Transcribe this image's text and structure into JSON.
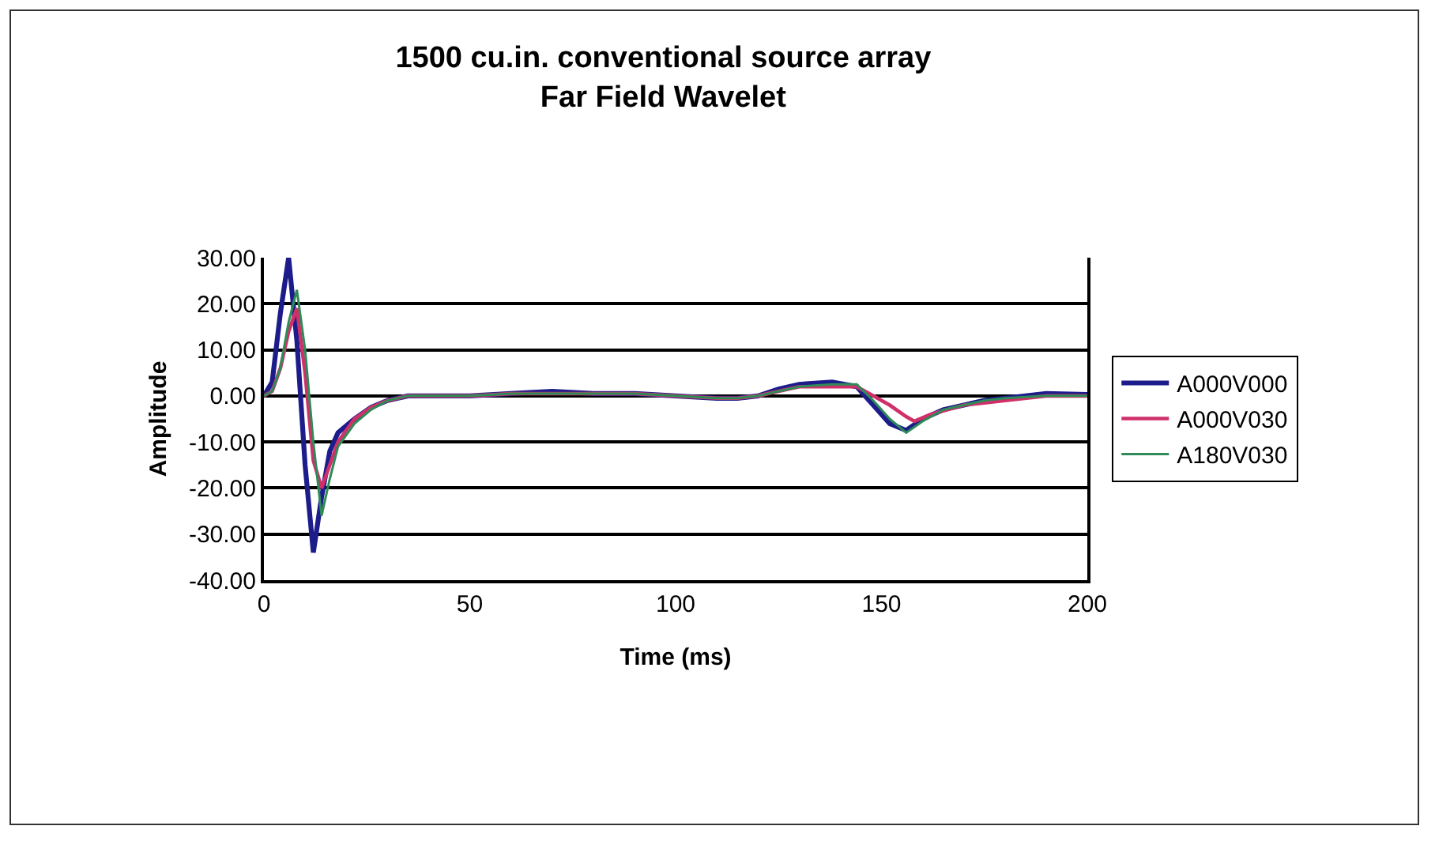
{
  "chart_data": {
    "type": "line",
    "title": "1500 cu.in. conventional source array\nFar Field Wavelet",
    "xlabel": "Time (ms)",
    "ylabel": "Amplitude",
    "xlim": [
      0,
      200
    ],
    "xticks": [
      {
        "value": 0,
        "label": "0"
      },
      50,
      100,
      150,
      200
    ],
    "ylim": [
      -40,
      30
    ],
    "yticks": [
      {
        "value": 30,
        "label": "30.00"
      },
      {
        "value": 20,
        "label": "20.00"
      },
      {
        "value": 10,
        "label": "10.00"
      },
      {
        "value": 0,
        "label": "0.00"
      },
      {
        "value": -10,
        "label": "-10.00"
      },
      {
        "value": -20,
        "label": "-20.00"
      },
      {
        "value": -30,
        "label": "-30.00"
      },
      {
        "value": -40,
        "label": "-40.00"
      }
    ],
    "grid": "y",
    "legend": "right",
    "marker": "none",
    "line_style": "solid",
    "series": [
      {
        "name": "A000V000",
        "color": "#1c1c8a",
        "x": [
          0,
          2,
          4,
          6,
          8,
          10,
          12,
          14,
          16,
          18,
          22,
          26,
          30,
          35,
          50,
          60,
          70,
          80,
          90,
          100,
          110,
          115,
          120,
          125,
          130,
          138,
          144,
          148,
          152,
          156,
          160,
          165,
          170,
          175,
          180,
          190,
          200
        ],
        "values": [
          0,
          3,
          18,
          30,
          12,
          -15,
          -34,
          -22,
          -12,
          -8,
          -5,
          -2.5,
          -1,
          0,
          0,
          0.5,
          1,
          0.5,
          0.5,
          0,
          -0.5,
          -0.5,
          0,
          1.5,
          2.5,
          3,
          2,
          -2,
          -6,
          -7.5,
          -5,
          -3,
          -2,
          -1,
          -0.5,
          0.5,
          0.3
        ]
      },
      {
        "name": "A000V030",
        "color": "#d0306a",
        "x": [
          0,
          2,
          4,
          6,
          8,
          10,
          12,
          14,
          16,
          18,
          22,
          26,
          30,
          35,
          50,
          60,
          70,
          80,
          90,
          100,
          110,
          115,
          120,
          125,
          130,
          138,
          144,
          148,
          152,
          156,
          158,
          162,
          166,
          170,
          175,
          180,
          190,
          200
        ],
        "values": [
          0,
          1,
          6,
          14,
          19,
          5,
          -14,
          -20,
          -15,
          -10,
          -5,
          -2.5,
          -1,
          0,
          0,
          0.5,
          0.5,
          0.5,
          0.5,
          0,
          -0.5,
          -0.5,
          0,
          1,
          2,
          2,
          2,
          0,
          -2,
          -4.5,
          -5.5,
          -4,
          -3,
          -2,
          -1.5,
          -1,
          0,
          0
        ]
      },
      {
        "name": "A180V030",
        "color": "#2e8b57",
        "x": [
          0,
          2,
          4,
          6,
          8,
          10,
          12,
          14,
          16,
          18,
          22,
          26,
          30,
          35,
          50,
          60,
          70,
          80,
          90,
          100,
          110,
          115,
          120,
          125,
          130,
          138,
          144,
          148,
          152,
          156,
          160,
          165,
          170,
          175,
          180,
          190,
          200
        ],
        "values": [
          0,
          1,
          6,
          16,
          23,
          10,
          -10,
          -26,
          -18,
          -11,
          -6,
          -3,
          -1,
          0,
          0,
          0.5,
          0.5,
          0.5,
          0.5,
          0,
          -0.5,
          -0.5,
          0,
          1,
          2,
          2.5,
          2.5,
          -1,
          -5,
          -8,
          -5.5,
          -3,
          -2,
          -1,
          -0.5,
          0,
          0
        ]
      }
    ]
  }
}
